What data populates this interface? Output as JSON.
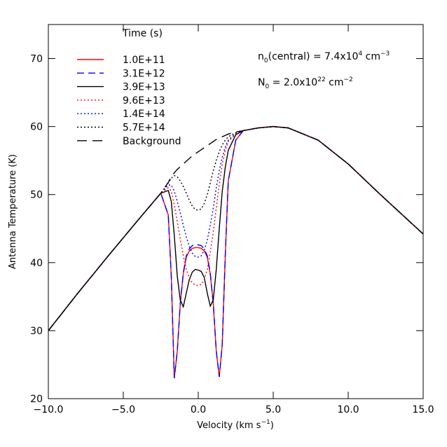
{
  "chart_data": {
    "type": "line",
    "xlabel": [
      "Velocity (km s",
      "−1",
      ")"
    ],
    "ylabel": "Antenna Temperature (K)",
    "legend_title": "Time (s)",
    "legend": "upper left",
    "annotations": [
      [
        "n",
        "0",
        "(central) = 7.4x10",
        "4",
        " cm",
        "−3"
      ],
      [
        "N",
        "0",
        " = 2.0x10",
        "22",
        " cm",
        "−2"
      ]
    ],
    "xlim": [
      -10,
      15
    ],
    "ylim": [
      20,
      75
    ],
    "xticks": [
      {
        "value": -10,
        "label": "−10.0"
      },
      {
        "value": -5,
        "label": "−5.0"
      },
      {
        "value": 0,
        "label": "0.0"
      },
      {
        "value": 5,
        "label": "5.0"
      },
      {
        "value": 10,
        "label": "10.0"
      },
      {
        "value": 15,
        "label": "15.0"
      }
    ],
    "yticks": [
      20,
      30,
      40,
      50,
      60,
      70
    ],
    "x": [
      -10,
      -8,
      -6,
      -4,
      -3,
      -2.5,
      -2,
      -1.8,
      -1.6,
      -1.4,
      -1.2,
      -1,
      -0.8,
      -0.6,
      -0.4,
      -0.2,
      0,
      0.2,
      0.4,
      0.6,
      0.8,
      1,
      1.2,
      1.4,
      1.6,
      1.8,
      2,
      2.5,
      3,
      4,
      5,
      6,
      8,
      10,
      12,
      15
    ],
    "series": [
      {
        "name": "1.0E+11",
        "color": "#ff0000",
        "dash": "solid",
        "values": [
          30,
          35.6,
          41,
          46.3,
          48.9,
          50.2,
          47,
          38,
          23,
          27,
          34,
          38.3,
          40.8,
          41.7,
          42.1,
          42.2,
          42.2,
          42.1,
          41.7,
          40.8,
          38.3,
          34,
          27,
          23.2,
          28,
          41,
          52,
          58,
          59.4,
          59.8,
          60,
          59.8,
          58,
          54.5,
          50.3,
          44.2
        ]
      },
      {
        "name": "3.1E+12",
        "color": "#0000ff",
        "dash": "dashed",
        "values": [
          30,
          35.6,
          41,
          46.3,
          48.9,
          50.2,
          47,
          38,
          23,
          27,
          34,
          38.5,
          41,
          42,
          42.5,
          42.7,
          42.6,
          42.5,
          42,
          41,
          38.5,
          34,
          27,
          23.2,
          28,
          41,
          52,
          58,
          59.4,
          59.8,
          60,
          59.8,
          58,
          54.5,
          50.3,
          44.2
        ]
      },
      {
        "name": "3.9E+13",
        "color": "#000000",
        "dash": "solid",
        "values": [
          30,
          35.6,
          41,
          46.3,
          48.9,
          50.2,
          50.6,
          49,
          44,
          38,
          34.5,
          33.5,
          35.5,
          37.5,
          38.6,
          39,
          38.9,
          38.7,
          37.8,
          35.5,
          33.6,
          34.5,
          39,
          45,
          50.5,
          54,
          56.5,
          58.8,
          59.4,
          59.8,
          60,
          59.8,
          58,
          54.5,
          50.3,
          44.2
        ]
      },
      {
        "name": "9.6E+13",
        "color": "#ff0000",
        "dash": "dotted",
        "values": [
          30,
          35.6,
          41,
          46.3,
          48.9,
          50.2,
          51,
          50.5,
          48.5,
          46,
          43.5,
          41,
          39,
          37.8,
          37,
          36.7,
          36.6,
          36.8,
          37.5,
          39,
          41.5,
          44.5,
          48,
          51.5,
          54.5,
          56.5,
          57.8,
          58.9,
          59.4,
          59.8,
          60,
          59.8,
          58,
          54.5,
          50.3,
          44.2
        ]
      },
      {
        "name": "1.4E+14",
        "color": "#0000ff",
        "dash": "dotted",
        "values": [
          30,
          35.6,
          41,
          46.3,
          48.9,
          50.2,
          51.4,
          51.4,
          50.5,
          49,
          47.3,
          45.5,
          43.8,
          42.4,
          41.4,
          40.9,
          40.8,
          41,
          41.8,
          43.3,
          45.5,
          48,
          51,
          53.5,
          55.5,
          57,
          58,
          59,
          59.4,
          59.8,
          60,
          59.8,
          58,
          54.5,
          50.3,
          44.2
        ]
      },
      {
        "name": "5.7E+14",
        "color": "#000000",
        "dash": "dotted",
        "values": [
          30,
          35.6,
          41,
          46.3,
          48.9,
          50.2,
          51.7,
          52.4,
          52.8,
          52.6,
          52,
          51.2,
          50.2,
          49.2,
          48.3,
          47.8,
          47.7,
          47.9,
          48.7,
          50,
          51.7,
          53.5,
          55,
          56.3,
          57.3,
          58,
          58.5,
          59.1,
          59.4,
          59.8,
          60,
          59.8,
          58,
          54.5,
          50.3,
          44.2
        ]
      },
      {
        "name": "Background",
        "color": "#000000",
        "dash": "long-dashed",
        "values": [
          30,
          35.6,
          41,
          46.3,
          48.9,
          50.2,
          51.8,
          52.6,
          53.2,
          53.7,
          54.1,
          54.5,
          54.9,
          55.3,
          55.7,
          56,
          56.3,
          56.6,
          56.9,
          57.2,
          57.5,
          57.8,
          58.1,
          58.3,
          58.5,
          58.7,
          58.9,
          59.2,
          59.4,
          59.8,
          60,
          59.8,
          58,
          54.5,
          50.3,
          44.2
        ]
      }
    ]
  }
}
